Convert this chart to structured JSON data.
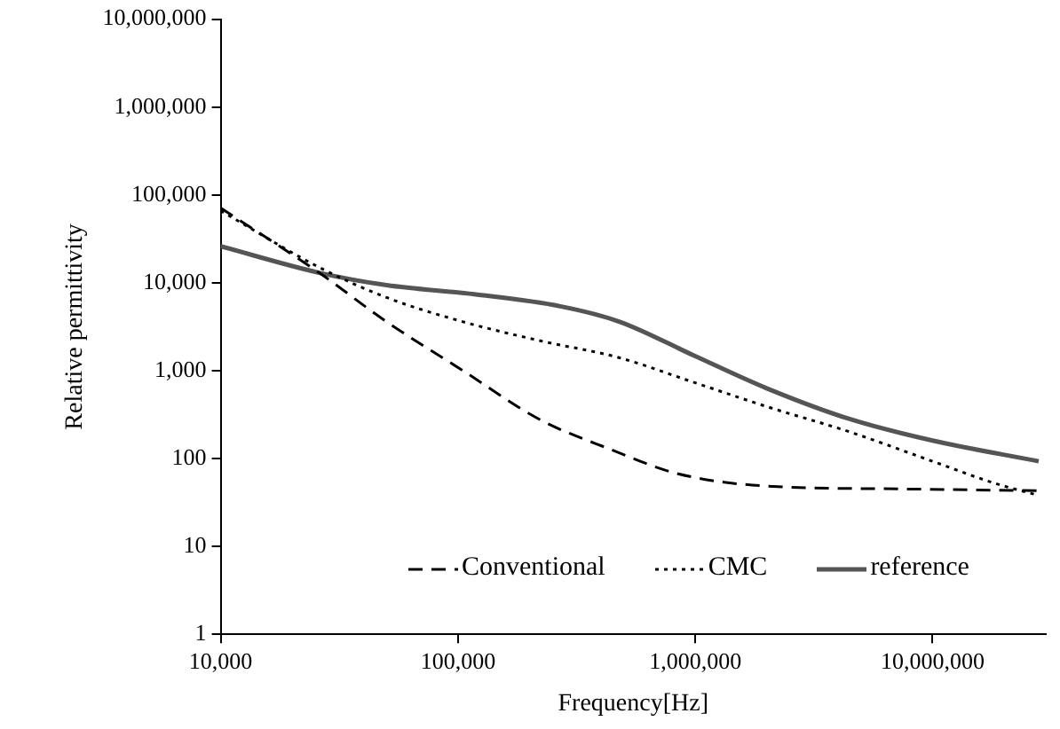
{
  "chart_data": {
    "type": "line",
    "xlabel": "Frequency[Hz]",
    "ylabel": "Relative permittivity",
    "log": "xy",
    "xlim": [
      10000,
      30000000
    ],
    "xticks": [
      {
        "value": 10000,
        "label": "10,000"
      },
      {
        "value": 100000,
        "label": "100,000"
      },
      {
        "value": 1000000,
        "label": "1,000,000"
      },
      {
        "value": 10000000,
        "label": "10,000,000"
      }
    ],
    "ylim": [
      1,
      10000000
    ],
    "yticks": [
      1,
      10,
      100,
      {
        "value": 1000,
        "label": "1,000"
      },
      {
        "value": 10000,
        "label": "10,000"
      },
      {
        "value": 100000,
        "label": "100,000"
      },
      {
        "value": 1000000,
        "label": "1,000,000"
      },
      {
        "value": 10000000,
        "label": "10,000,000"
      }
    ],
    "grid": false,
    "legend": "bottom",
    "marker": "none",
    "series": [
      {
        "name": "Conventional",
        "color": "#000000",
        "line_style": "dashed",
        "x": [
          10000,
          26000,
          50000,
          105000,
          220000,
          430000,
          830000,
          1900000,
          7800000,
          28000000
        ],
        "values": [
          71000,
          13000,
          3600,
          1000,
          280,
          130,
          68,
          49,
          45,
          43
        ]
      },
      {
        "name": "CMC",
        "color": "#000000",
        "line_style": "dotted",
        "x": [
          10000,
          26000,
          50000,
          105000,
          220000,
          480000,
          980000,
          2000000,
          4500000,
          10000000,
          18000000,
          28000000
        ],
        "values": [
          66000,
          15000,
          6800,
          3600,
          2200,
          1400,
          740,
          390,
          200,
          93,
          53,
          38
        ]
      },
      {
        "name": "reference",
        "color": "#555555",
        "line_style": "solid",
        "x": [
          10000,
          26000,
          50000,
          117000,
          270000,
          480000,
          980000,
          2000000,
          4500000,
          10000000,
          28000000
        ],
        "values": [
          26000,
          13000,
          9400,
          7400,
          5400,
          3600,
          1500,
          630,
          280,
          160,
          93
        ]
      }
    ]
  }
}
